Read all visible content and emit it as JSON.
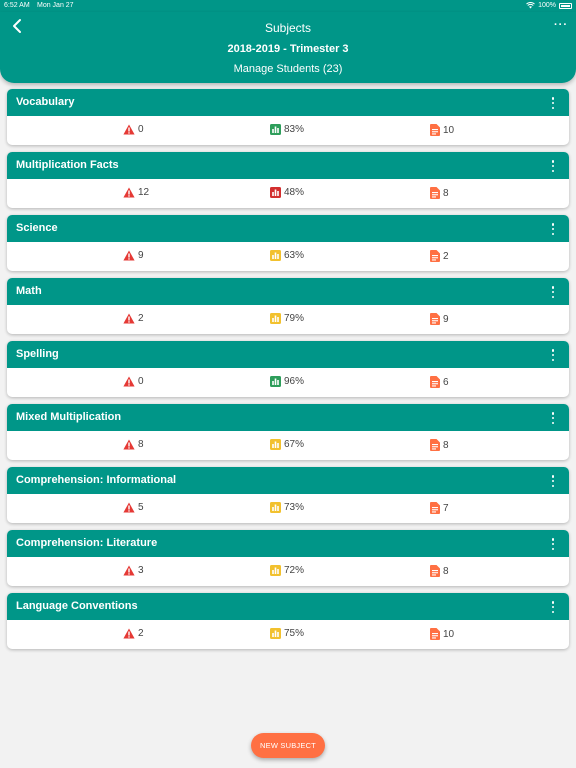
{
  "status_bar": {
    "time": "6:52 AM",
    "date": "Mon Jan 27",
    "battery": "100%"
  },
  "header": {
    "title": "Subjects",
    "term": "2018-2019 - Trimester 3",
    "manage": "Manage Students (23)"
  },
  "colors": {
    "primary": "#009688",
    "good": "#2e9e5b",
    "warning": "#f2c12e",
    "bad": "#d32f2f",
    "alert": "#e53935",
    "doc": "#ff7043",
    "fab": "#ff7043"
  },
  "icons": {
    "alert": "warning-triangle-icon",
    "score": "bar-chart-icon",
    "docs": "document-icon"
  },
  "subjects": [
    {
      "name": "Vocabulary",
      "alerts": "0",
      "score": "83%",
      "score_level": "good",
      "docs": "10"
    },
    {
      "name": "Multiplication Facts",
      "alerts": "12",
      "score": "48%",
      "score_level": "bad",
      "docs": "8"
    },
    {
      "name": "Science",
      "alerts": "9",
      "score": "63%",
      "score_level": "warning",
      "docs": "2"
    },
    {
      "name": "Math",
      "alerts": "2",
      "score": "79%",
      "score_level": "warning",
      "docs": "9"
    },
    {
      "name": "Spelling",
      "alerts": "0",
      "score": "96%",
      "score_level": "good",
      "docs": "6"
    },
    {
      "name": "Mixed Multiplication",
      "alerts": "8",
      "score": "67%",
      "score_level": "warning",
      "docs": "8"
    },
    {
      "name": "Comprehension: Informational",
      "alerts": "5",
      "score": "73%",
      "score_level": "warning",
      "docs": "7"
    },
    {
      "name": "Comprehension: Literature",
      "alerts": "3",
      "score": "72%",
      "score_level": "warning",
      "docs": "8"
    },
    {
      "name": "Language Conventions",
      "alerts": "2",
      "score": "75%",
      "score_level": "warning",
      "docs": "10"
    }
  ],
  "fab": {
    "label": "NEW SUBJECT"
  }
}
